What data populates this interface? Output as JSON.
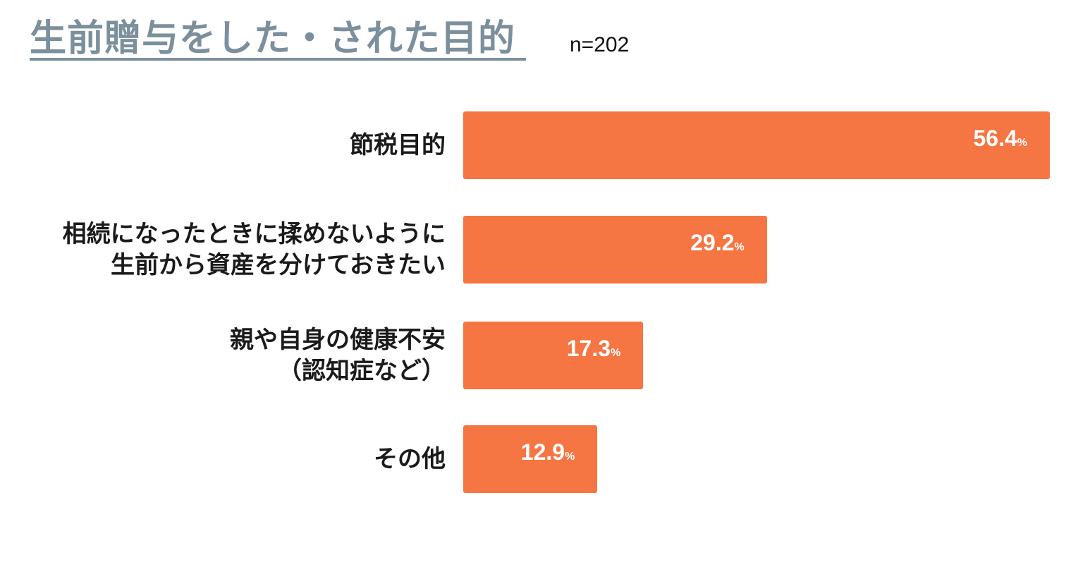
{
  "title": "生前贈与をした・された目的",
  "sample_note": "n=202",
  "colors": {
    "bar": "#f57543",
    "title": "#7b8f9c"
  },
  "chart_data": {
    "type": "bar",
    "orientation": "horizontal",
    "title": "生前贈与をした・された目的",
    "categories": [
      [
        "節税目的"
      ],
      [
        "相続になったときに揉めないように",
        "生前から資産を分けておきたい"
      ],
      [
        "親や自身の健康不安",
        "（認知症など）"
      ],
      [
        "その他"
      ]
    ],
    "values": [
      56.4,
      29.2,
      17.3,
      12.9
    ],
    "value_labels": [
      "56.4",
      "29.2",
      "17.3",
      "12.9"
    ],
    "unit": "%",
    "xlim": [
      0,
      60
    ],
    "grid": false,
    "legend": "none"
  }
}
